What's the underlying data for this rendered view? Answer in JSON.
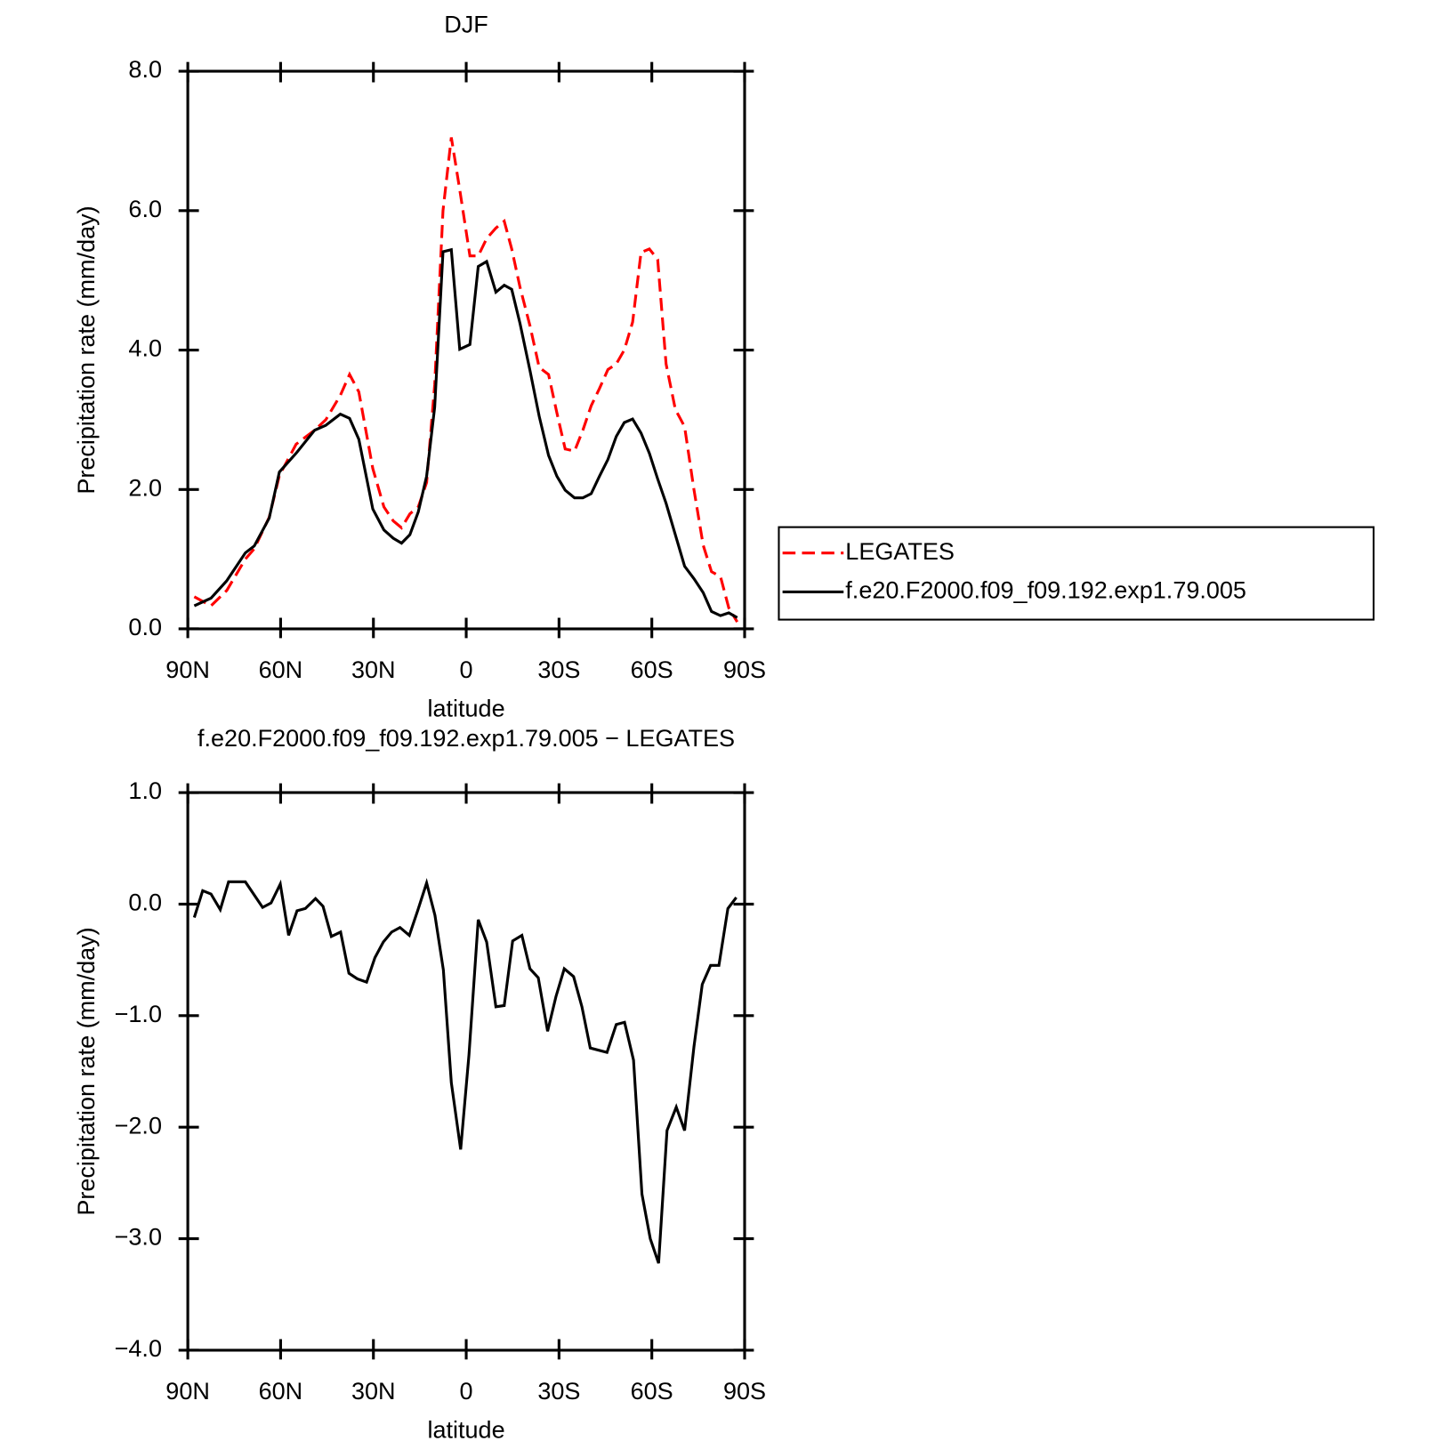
{
  "chart_data": [
    {
      "type": "line",
      "title": "DJF",
      "xlabel": "latitude",
      "ylabel": "Precipitation rate (mm/day)",
      "x": [
        87.9,
        82.5,
        77.4,
        71.4,
        68.5,
        63.7,
        60.4,
        55,
        49,
        45.4,
        40.7,
        37.7,
        34.7,
        30.2,
        26.6,
        23.6,
        20.9,
        18.2,
        15.5,
        12.8,
        10.2,
        7.5,
        4.8,
        2.1,
        -1.2,
        -3.9,
        -6.6,
        -9.6,
        -12.3,
        -14.7,
        -17.4,
        -20.6,
        -23.6,
        -26.6,
        -29.3,
        -32,
        -35,
        -37.7,
        -40.4,
        -43.1,
        -45.8,
        -48.5,
        -51.1,
        -53.8,
        -56.5,
        -59.2,
        -61.9,
        -64.6,
        -67.6,
        -70.6,
        -73.6,
        -76.6,
        -79.3,
        -82.2,
        -84.9,
        -87.6
      ],
      "series": [
        {
          "name": "LEGATES",
          "color": "#ff0000",
          "dash": true,
          "values": [
            0.46,
            0.33,
            0.55,
            1.0,
            1.15,
            1.6,
            2.2,
            2.65,
            2.85,
            3.0,
            3.35,
            3.65,
            3.4,
            2.3,
            1.75,
            1.55,
            1.45,
            1.65,
            1.75,
            2.1,
            3.5,
            6.0,
            7.05,
            6.3,
            5.35,
            5.35,
            5.6,
            5.75,
            5.85,
            5.45,
            4.9,
            4.35,
            3.75,
            3.65,
            3.1,
            2.58,
            2.55,
            2.85,
            3.2,
            3.45,
            3.72,
            3.8,
            4.0,
            4.4,
            5.4,
            5.45,
            5.3,
            3.8,
            3.15,
            2.9,
            2.0,
            1.2,
            0.82,
            0.75,
            0.3,
            0.1
          ]
        },
        {
          "name": "f.e20.F2000.f09_f09.192.exp1.79.005",
          "color": "#000000",
          "dash": false,
          "values": [
            0.33,
            0.44,
            0.69,
            1.09,
            1.19,
            1.59,
            2.25,
            2.52,
            2.85,
            2.92,
            3.08,
            3.02,
            2.72,
            1.72,
            1.42,
            1.3,
            1.23,
            1.35,
            1.68,
            2.19,
            3.18,
            5.41,
            5.44,
            4.01,
            4.08,
            5.2,
            5.27,
            4.83,
            4.93,
            4.87,
            4.38,
            3.71,
            3.05,
            2.49,
            2.19,
            1.99,
            1.88,
            1.88,
            1.94,
            2.19,
            2.43,
            2.76,
            2.96,
            3.01,
            2.81,
            2.52,
            2.15,
            1.8,
            1.35,
            0.9,
            0.72,
            0.52,
            0.25,
            0.19,
            0.23,
            0.16
          ]
        }
      ],
      "xlim": [
        90,
        -90
      ],
      "xticks": [
        {
          "value": 90,
          "label": "90N"
        },
        {
          "value": 60,
          "label": "60N"
        },
        {
          "value": 30,
          "label": "30N"
        },
        0,
        {
          "value": -30,
          "label": "30S"
        },
        {
          "value": -60,
          "label": "60S"
        },
        {
          "value": -90,
          "label": "90S"
        }
      ],
      "ylim": [
        0,
        8
      ],
      "yticks": [
        {
          "value": 0,
          "label": "0.0"
        },
        {
          "value": 2,
          "label": "2.0"
        },
        {
          "value": 4,
          "label": "4.0"
        },
        {
          "value": 6,
          "label": "6.0"
        },
        {
          "value": 8,
          "label": "8.0"
        }
      ],
      "legend": "outside-right"
    },
    {
      "type": "line",
      "title": "f.e20.F2000.f09_f09.192.exp1.79.005 − LEGATES",
      "xlabel": "latitude",
      "ylabel": "Precipitation rate (mm/day)",
      "x": [
        87.9,
        85.2,
        82.5,
        79.5,
        76.8,
        71.4,
        65.8,
        63.1,
        60.1,
        57.4,
        54.7,
        52,
        48.7,
        46.3,
        43.6,
        40.6,
        37.9,
        35.2,
        32.2,
        29.5,
        26.8,
        24.1,
        21.4,
        18.4,
        15.7,
        12.8,
        10.1,
        7.4,
        4.8,
        1.8,
        -0.9,
        -3.9,
        -6.6,
        -9.6,
        -12.3,
        -15,
        -18,
        -20.6,
        -23.3,
        -26.3,
        -29,
        -31.7,
        -34.7,
        -37.4,
        -40.1,
        -45.5,
        -48.5,
        -51.2,
        -54.1,
        -56.8,
        -59.5,
        -62.2,
        -64.9,
        -67.9,
        -70.6,
        -73.6,
        -76.3,
        -79,
        -81.7,
        -84.6,
        -87.3
      ],
      "values": [
        -0.12,
        0.12,
        0.09,
        -0.05,
        0.2,
        0.2,
        -0.03,
        0.01,
        0.18,
        -0.28,
        -0.06,
        -0.04,
        0.05,
        -0.02,
        -0.29,
        -0.25,
        -0.62,
        -0.67,
        -0.7,
        -0.48,
        -0.34,
        -0.25,
        -0.21,
        -0.28,
        -0.06,
        0.19,
        -0.1,
        -0.59,
        -1.6,
        -2.2,
        -1.35,
        -0.14,
        -0.34,
        -0.92,
        -0.91,
        -0.33,
        -0.28,
        -0.58,
        -0.66,
        -1.14,
        -0.83,
        -0.58,
        -0.65,
        -0.92,
        -1.29,
        -1.33,
        -1.08,
        -1.06,
        -1.4,
        -2.6,
        -3.0,
        -3.22,
        -2.03,
        -1.82,
        -2.03,
        -1.28,
        -0.72,
        -0.55,
        -0.55,
        -0.04,
        0.06
      ],
      "color": "#000000",
      "xlim": [
        90,
        -90
      ],
      "xticks": [
        {
          "value": 90,
          "label": "90N"
        },
        {
          "value": 60,
          "label": "60N"
        },
        {
          "value": 30,
          "label": "30N"
        },
        0,
        {
          "value": -30,
          "label": "30S"
        },
        {
          "value": -60,
          "label": "60S"
        },
        {
          "value": -90,
          "label": "90S"
        }
      ],
      "ylim": [
        -4,
        1
      ],
      "yticks": [
        {
          "value": -4,
          "label": "−4.0"
        },
        {
          "value": -3,
          "label": "−3.0"
        },
        {
          "value": -2,
          "label": "−2.0"
        },
        {
          "value": -1,
          "label": "−1.0"
        },
        {
          "value": 0,
          "label": "0.0"
        },
        {
          "value": 1,
          "label": "1.0"
        }
      ]
    }
  ]
}
